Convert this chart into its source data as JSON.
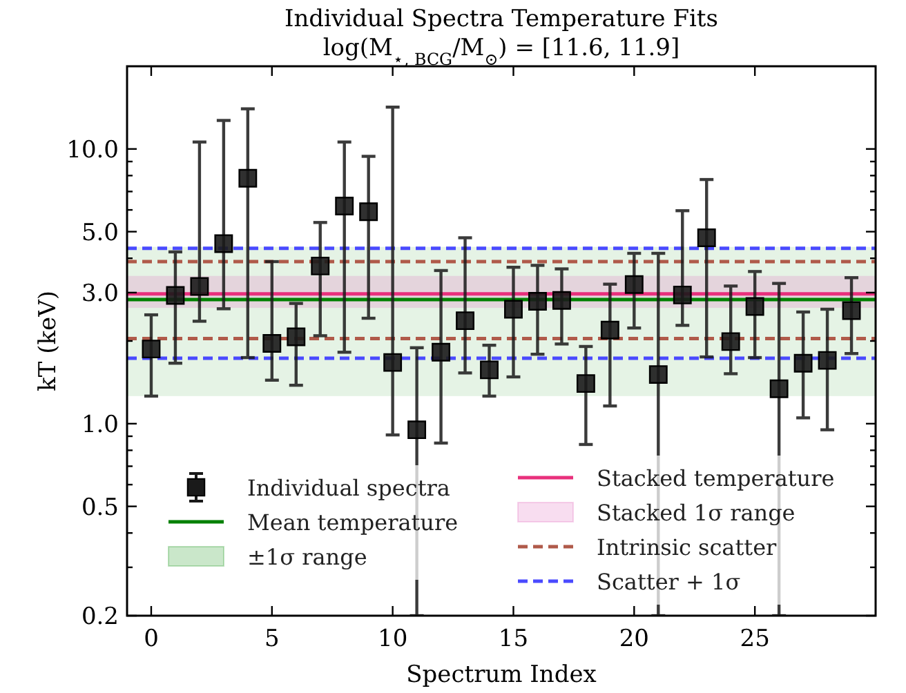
{
  "chart_data": {
    "type": "scatter",
    "title": "Individual Spectra Temperature Fits",
    "subtitle": "log(M$_{⋆, BCG}$/M$_{⊙}$) = [11.6, 11.9]",
    "xlabel": "Spectrum Index",
    "ylabel": "kT (keV)",
    "log": "y",
    "marker": "square",
    "legend": "bottom",
    "grid": false,
    "x": [
      0,
      1,
      2,
      3,
      4,
      5,
      6,
      7,
      8,
      9,
      10,
      11,
      12,
      13,
      14,
      15,
      16,
      17,
      18,
      19,
      20,
      21,
      22,
      23,
      24,
      25,
      26,
      27,
      28,
      29
    ],
    "xlim": [
      -1,
      30
    ],
    "xticks": [
      0,
      5,
      10,
      15,
      20,
      25
    ],
    "ylim": [
      0.2,
      20
    ],
    "yticks": [
      0.2,
      {
        "value": 0.3,
        "label": null
      },
      {
        "value": 0.4,
        "label": null
      },
      0.5,
      {
        "value": 0.6,
        "label": null
      },
      {
        "value": 0.7,
        "label": null
      },
      {
        "value": 0.8,
        "label": null
      },
      {
        "value": 0.9,
        "label": null
      },
      {
        "value": 1,
        "label": "1.0"
      },
      {
        "value": 2,
        "label": null
      },
      {
        "value": 3,
        "label": "3.0"
      },
      {
        "value": 4,
        "label": null
      },
      {
        "value": 5,
        "label": "5.0"
      },
      {
        "value": 6,
        "label": null
      },
      {
        "value": 7,
        "label": null
      },
      {
        "value": 8,
        "label": null
      },
      {
        "value": 9,
        "label": null
      },
      {
        "value": 10,
        "label": "10.0"
      }
    ],
    "series": [
      {
        "name": "Individual spectra",
        "color": "#1a1a1a",
        "values": [
          1.87,
          2.93,
          3.16,
          4.52,
          7.82,
          1.96,
          2.07,
          3.75,
          6.2,
          5.91,
          1.67,
          0.95,
          1.82,
          2.37,
          1.57,
          2.61,
          2.79,
          2.81,
          1.4,
          2.19,
          3.21,
          1.51,
          2.94,
          4.75,
          1.99,
          2.67,
          1.34,
          1.66,
          1.7,
          2.58
        ],
        "errors": [
          [
            1.26,
            2.49
          ],
          [
            1.66,
            4.22
          ],
          [
            2.36,
            10.6
          ],
          [
            2.62,
            12.7
          ],
          [
            1.74,
            14
          ],
          [
            1.44,
            3.89
          ],
          [
            1.38,
            2.74
          ],
          [
            2.09,
            5.4
          ],
          [
            1.82,
            10.6
          ],
          [
            2.42,
            9.4
          ],
          [
            0.91,
            14.2
          ],
          [
            0.2,
            1.89
          ],
          [
            0.85,
            3.61
          ],
          [
            1.53,
            4.75
          ],
          [
            1.26,
            1.93
          ],
          [
            1.48,
            3.71
          ],
          [
            1.79,
            3.77
          ],
          [
            1.95,
            3.66
          ],
          [
            0.84,
            1.91
          ],
          [
            1.16,
            3.22
          ],
          [
            2.23,
            4.17
          ],
          [
            0.2,
            4.17
          ],
          [
            2.28,
            5.96
          ],
          [
            1.75,
            7.74
          ],
          [
            1.52,
            3.17
          ],
          [
            1.74,
            3.58
          ],
          [
            0.2,
            3.24
          ],
          [
            1.05,
            2.55
          ],
          [
            0.95,
            2.61
          ],
          [
            1.8,
            3.4
          ]
        ]
      }
    ],
    "ref_lines": [
      {
        "axis": "y",
        "value": 2.83,
        "label": "Mean temperature",
        "color": "#008000",
        "line_style": "solid"
      },
      {
        "axis": "y",
        "value": 2.97,
        "label": "Stacked temperature",
        "color": "#e8307c",
        "line_style": "solid"
      },
      {
        "axis": "y",
        "value": 3.89,
        "label": "Intrinsic scatter",
        "color": "#b05a4a",
        "line_style": "dashed"
      },
      {
        "axis": "y",
        "value": 2.04,
        "color": "#b05a4a",
        "line_style": "dashed"
      },
      {
        "axis": "y",
        "value": 4.35,
        "label": "Scatter + 1σ",
        "color": "#4a4aff",
        "line_style": "dashed"
      },
      {
        "axis": "y",
        "value": 1.73,
        "color": "#4a4aff",
        "line_style": "dashed"
      }
    ],
    "bands": [
      {
        "axis": "y",
        "from": 1.26,
        "to": 4.4,
        "label": "±1σ range",
        "color": "#2ca02c"
      },
      {
        "axis": "y",
        "from": 2.64,
        "to": 3.45,
        "label": "Stacked 1σ range",
        "color": "#e377c2"
      }
    ]
  }
}
